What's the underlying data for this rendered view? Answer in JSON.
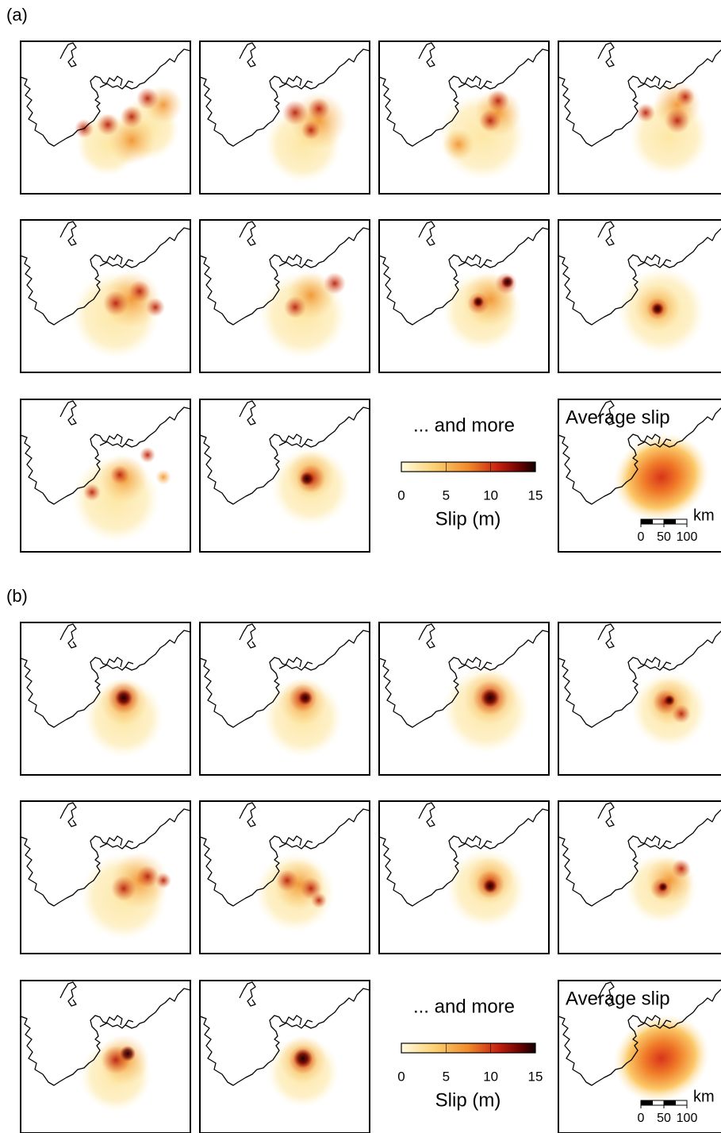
{
  "figure_a": {
    "label": "(a)",
    "more": "... and more",
    "colorbar": {
      "label": "Slip (m)",
      "lim": [
        0,
        15
      ],
      "ticks": [
        0,
        5,
        10,
        15
      ]
    },
    "average": {
      "title": "Average slip",
      "scalebar": {
        "ticks": [
          0,
          50,
          100
        ],
        "unit": "km"
      }
    }
  },
  "figure_b": {
    "label": "(b)",
    "more": "... and more",
    "colorbar": {
      "label": "Slip (m)",
      "lim": [
        0,
        15
      ],
      "ticks": [
        0,
        5,
        10,
        15
      ]
    },
    "average": {
      "title": "Average slip",
      "scalebar": {
        "ticks": [
          0,
          50,
          100
        ],
        "unit": "km"
      }
    }
  }
}
